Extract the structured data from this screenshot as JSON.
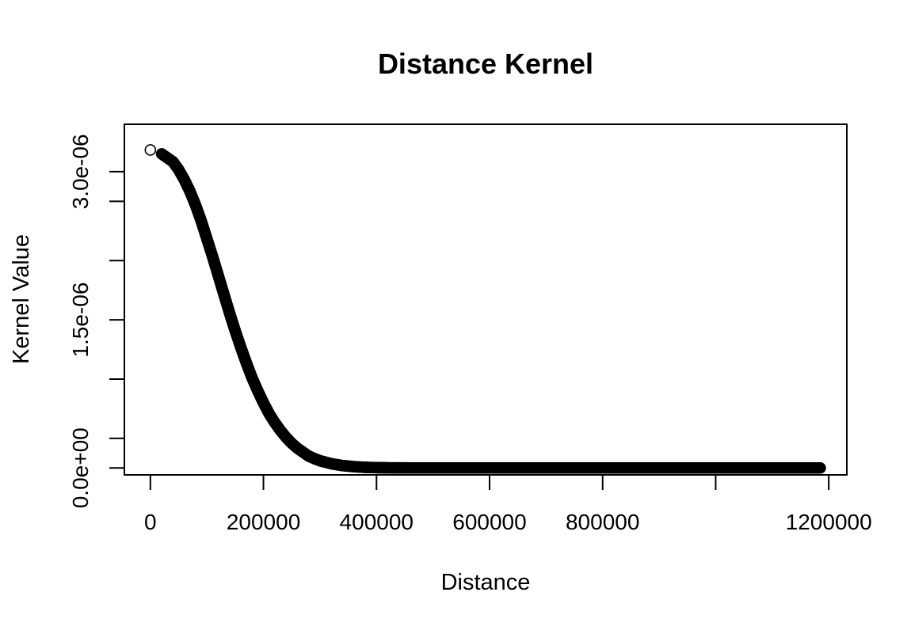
{
  "chart_data": {
    "type": "scatter",
    "title": "Distance Kernel",
    "xlabel": "Distance",
    "ylabel": "Kernel Value",
    "xlim": [
      -46000,
      1232000
    ],
    "ylim": [
      -7e-08,
      3.48e-06
    ],
    "x_ticks": [
      0,
      200000,
      400000,
      600000,
      800000,
      1000000,
      1200000
    ],
    "x_tick_labels": [
      "0",
      "200000",
      "400000",
      "600000",
      "800000",
      "",
      "1200000"
    ],
    "y_ticks": [
      0,
      3e-07,
      6e-07,
      9e-07,
      1.2e-06,
      1.5e-06,
      1.8e-06,
      2.1e-06,
      2.4e-06,
      2.7e-06,
      3e-06
    ],
    "y_tick_labels": [
      "0.0e+00",
      "",
      "",
      "",
      "",
      "1.5e-06",
      "",
      "",
      "",
      "",
      "3.0e-06"
    ],
    "y_tick_marks": [
      0,
      3e-07,
      9e-07,
      1.5e-06,
      2.1e-06,
      2.7e-06,
      3e-06
    ],
    "grid": false,
    "legend": "none",
    "points": {
      "x": [
        0,
        20000,
        25000,
        30000,
        40000,
        50000,
        60000,
        70000,
        80000,
        90000,
        100000,
        110000,
        120000,
        130000,
        140000,
        150000,
        160000,
        170000,
        180000,
        190000,
        200000,
        210000,
        220000,
        230000,
        240000,
        250000,
        260000,
        270000,
        280000,
        290000,
        300000,
        320000,
        340000,
        360000,
        380000,
        400000,
        420000,
        440000,
        460000,
        480000,
        500000,
        540000,
        580000,
        620000,
        660000,
        700000,
        740000,
        780000,
        820000,
        860000,
        900000,
        940000,
        980000,
        1020000,
        1060000,
        1080000,
        1100000,
        1120000,
        1140000,
        1175000,
        1185000
      ],
      "y": [
        3.22e-06,
        3.18e-06,
        3.16e-06,
        3.14e-06,
        3.1e-06,
        3.02e-06,
        2.92e-06,
        2.8e-06,
        2.66e-06,
        2.5e-06,
        2.32e-06,
        2.14e-06,
        1.95e-06,
        1.76e-06,
        1.57e-06,
        1.39e-06,
        1.22e-06,
        1.06e-06,
        9.1e-07,
        7.8e-07,
        6.6e-07,
        5.5e-07,
        4.6e-07,
        3.8e-07,
        3.1e-07,
        2.5e-07,
        2e-07,
        1.6e-07,
        1.2e-07,
        9.5e-08,
        7.3e-08,
        4.3e-08,
        2.4e-08,
        1.3e-08,
        6e-09,
        3e-09,
        1.2e-09,
        5e-10,
        2e-10,
        0,
        0,
        0,
        0,
        0,
        0,
        0,
        0,
        0,
        0,
        0,
        0,
        0,
        0,
        0,
        0,
        0,
        0,
        0,
        0,
        0,
        0
      ]
    }
  }
}
